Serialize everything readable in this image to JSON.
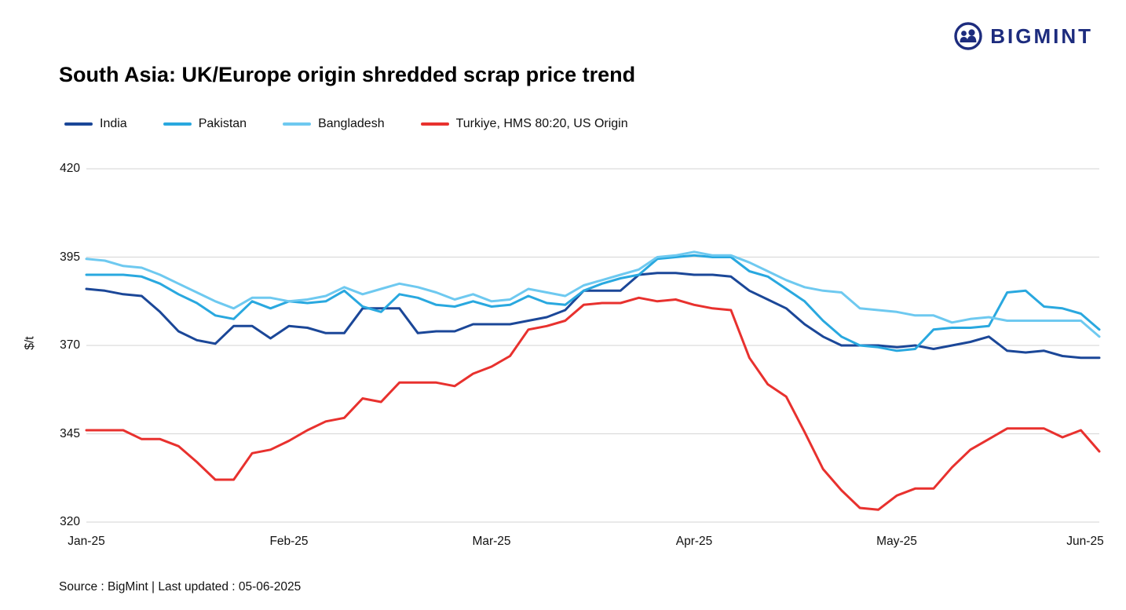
{
  "brand": {
    "name": "BIGMINT",
    "color": "#1D2C7E"
  },
  "title": "South Asia: UK/Europe origin shredded scrap price trend",
  "source": "Source : BigMint | Last updated : 05-06-2025",
  "chart_data": {
    "type": "line",
    "title": "South Asia: UK/Europe origin shredded scrap price trend",
    "xlabel": "",
    "ylabel": "$/t",
    "ylim": [
      320,
      420
    ],
    "y_ticks": [
      420,
      395,
      370,
      345,
      320
    ],
    "x_ticks": [
      "Jan-25",
      "Feb-25",
      "Mar-25",
      "Apr-25",
      "May-25",
      "Jun-25"
    ],
    "grid": "horizontal",
    "gridline_color": "#DCDCDC",
    "legend_position": "top-left",
    "series": [
      {
        "name": "India",
        "color": "#1B4798",
        "values": [
          386,
          385.5,
          384.5,
          384,
          379.5,
          374,
          371.5,
          370.5,
          375.5,
          375.5,
          372,
          375.5,
          375,
          373.5,
          373.5,
          380.5,
          380.5,
          380.5,
          373.5,
          374,
          374,
          376,
          376,
          376,
          377,
          378,
          380,
          385.5,
          385.5,
          385.5,
          390,
          390.5,
          390.5,
          390,
          390,
          389.5,
          385.5,
          383,
          380.5,
          376,
          372.5,
          370,
          370,
          370,
          369.5,
          370,
          369,
          370,
          371,
          372.5,
          368.5,
          368,
          368.5,
          367,
          366.5,
          366.5
        ]
      },
      {
        "name": "Pakistan",
        "color": "#29A8DF",
        "values": [
          390,
          390,
          390,
          389.5,
          387.5,
          384.5,
          382,
          378.5,
          377.5,
          382.5,
          380.5,
          382.5,
          382,
          382.5,
          385.5,
          381,
          379.5,
          384.5,
          383.5,
          381.5,
          381,
          382.5,
          381,
          381.5,
          384,
          382,
          381.5,
          385.5,
          387.5,
          389,
          390,
          394.5,
          395,
          395.5,
          395,
          395,
          391,
          389.5,
          386,
          382.5,
          377,
          372.5,
          370,
          369.5,
          368.5,
          369,
          374.5,
          375,
          375,
          375.5,
          385,
          385.5,
          381,
          380.5,
          379,
          374.5
        ]
      },
      {
        "name": "Bangladesh",
        "color": "#6EC9F0",
        "values": [
          394.5,
          394,
          392.5,
          392,
          390,
          387.5,
          385,
          382.5,
          380.5,
          383.5,
          383.5,
          382.5,
          383,
          384,
          386.5,
          384.5,
          386,
          387.5,
          386.5,
          385,
          383,
          384.5,
          382.5,
          383,
          386,
          385,
          384,
          387,
          388.5,
          390,
          391.5,
          395,
          395.5,
          396.5,
          395.5,
          395.5,
          393.5,
          391,
          388.5,
          386.5,
          385.5,
          385,
          380.5,
          380,
          379.5,
          378.5,
          378.5,
          376.5,
          377.5,
          378,
          377,
          377,
          377,
          377,
          377,
          372.5
        ]
      },
      {
        "name": "Turkiye, HMS 80:20, US Origin",
        "color": "#E8312E",
        "values": [
          346,
          346,
          346,
          343.5,
          343.5,
          341.5,
          337,
          332,
          332,
          339.5,
          340.5,
          343,
          346,
          348.5,
          349.5,
          355,
          354,
          359.5,
          359.5,
          359.5,
          358.5,
          362,
          364,
          367,
          374.5,
          375.5,
          377,
          381.5,
          382,
          382,
          383.5,
          382.5,
          383,
          381.5,
          380.5,
          380,
          366.5,
          359,
          355.5,
          345.5,
          335,
          329,
          324,
          323.5,
          327.5,
          329.5,
          329.5,
          335.5,
          340.5,
          343.5,
          346.5,
          346.5,
          346.5,
          344,
          346,
          340
        ]
      }
    ]
  }
}
